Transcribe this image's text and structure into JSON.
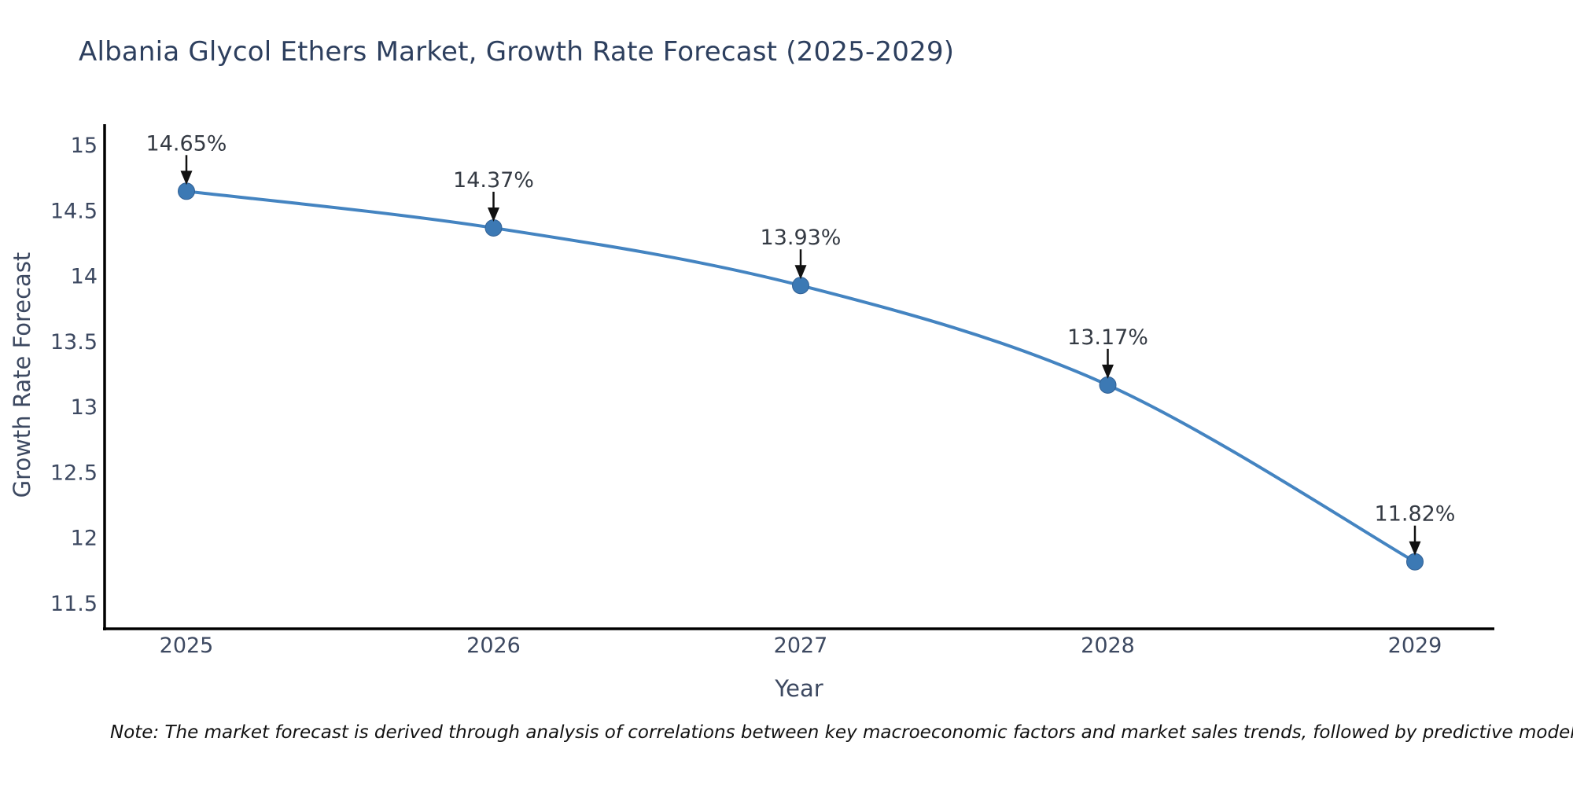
{
  "page": {
    "note": "Note: The market forecast is derived through analysis of correlations between key macroeconomic factors and market sales trends, followed by predictive modeling to project future sal"
  },
  "chart_data": {
    "type": "line",
    "title": "Albania Glycol Ethers Market, Growth Rate Forecast (2025-2029)",
    "xlabel": "Year",
    "ylabel": "Growth Rate Forecast",
    "x": [
      2025,
      2026,
      2027,
      2028,
      2029
    ],
    "series": [
      {
        "name": "Growth Rate Forecast",
        "values": [
          14.65,
          14.37,
          13.93,
          13.17,
          11.82
        ]
      }
    ],
    "point_labels": [
      "14.65%",
      "14.37%",
      "13.93%",
      "13.17%",
      "11.82%"
    ],
    "y_ticks": [
      15,
      14.5,
      14,
      13.5,
      13,
      12.5,
      12,
      11.5
    ],
    "x_tick_labels": [
      "2025",
      "2026",
      "2027",
      "2028",
      "2029"
    ],
    "ylim": [
      11.31,
      15.16
    ],
    "xlim": [
      2024.73,
      2029.27
    ],
    "grid": false,
    "legend": "none",
    "marker_style": "circle",
    "annotation_arrows": true,
    "colors": {
      "line": "#4484c1",
      "marker": "#3c79b4",
      "marker_edge": "#326195",
      "arrow": "#111111",
      "title": "#2d3f5e",
      "axis_text": "#3d4961",
      "annotation_text": "#343a43",
      "spine": "#000000",
      "note_text": "#111111"
    }
  }
}
